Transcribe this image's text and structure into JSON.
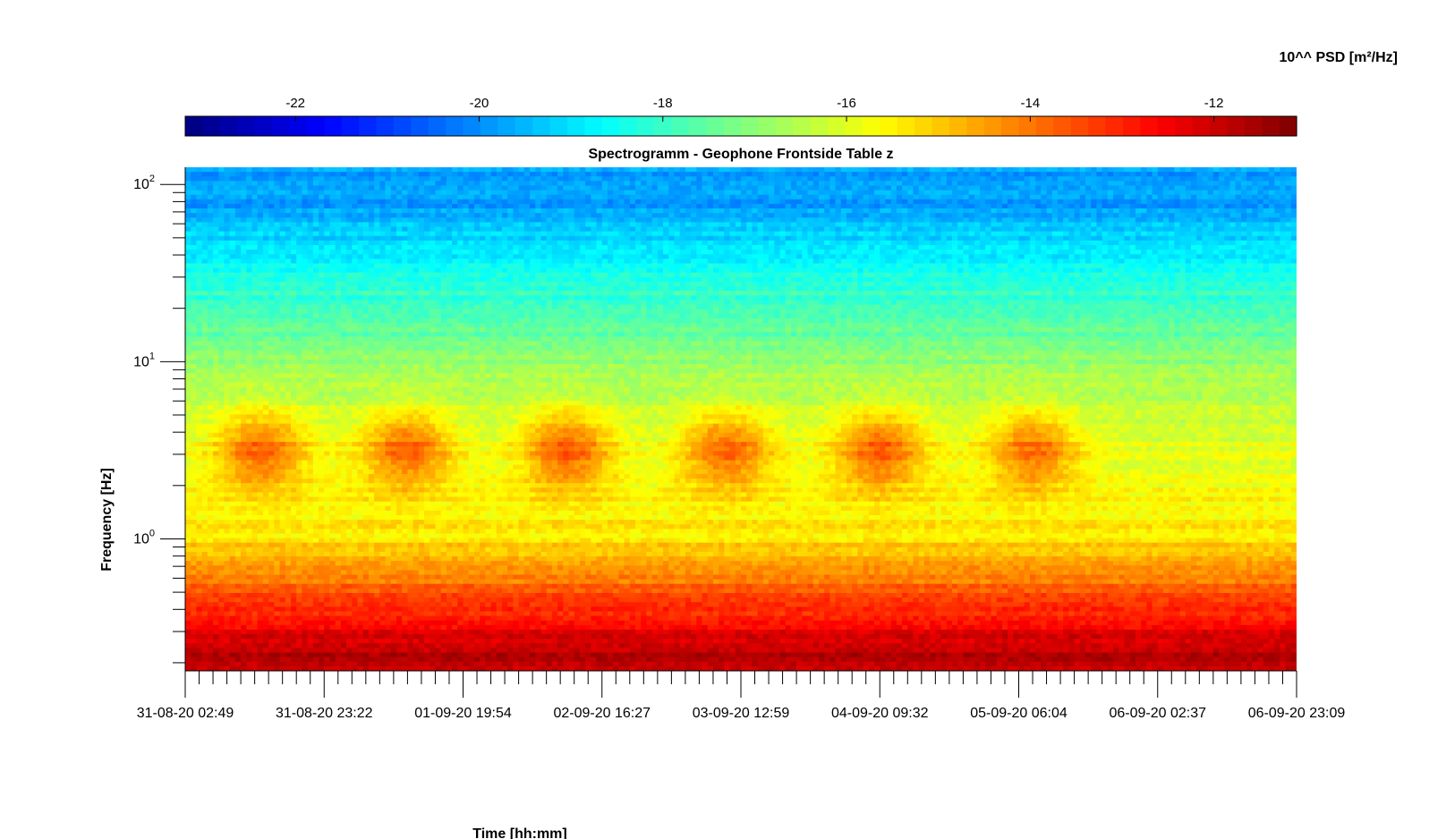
{
  "chart_data": {
    "type": "heatmap",
    "title": "Spectrogramm - Geophone Frontside Table z",
    "xlabel": "Time [hh:mm]",
    "ylabel": "Frequency [Hz]",
    "colorbar": {
      "label": "10^^ PSD [m²/Hz]",
      "range": [
        -23.2,
        -11.1
      ],
      "ticks": [
        "-22",
        "-20",
        "-18",
        "-16",
        "-14",
        "-12"
      ],
      "tick_values": [
        -22,
        -20,
        -18,
        -16,
        -14,
        -12
      ],
      "colormap": "jet",
      "position": "top"
    },
    "x_tick_labels": [
      "31-08-20 02:49",
      "31-08-20 23:22",
      "01-09-20 19:54",
      "02-09-20 16:27",
      "03-09-20 12:59",
      "04-09-20 09:32",
      "05-09-20 06:04",
      "06-09-20 02:37",
      "06-09-20 23:09"
    ],
    "x_minor_ticks_per_interval": 10,
    "y_scale": "log",
    "y_range": [
      0.18,
      125
    ],
    "y_tick_labels": [
      {
        "value": 1,
        "base": "10",
        "exp": "0"
      },
      {
        "value": 10,
        "base": "10",
        "exp": "1"
      },
      {
        "value": 100,
        "base": "10",
        "exp": "2"
      }
    ],
    "bands": [
      {
        "f_low": 0.18,
        "f_high": 0.3,
        "log_psd": -11.8
      },
      {
        "f_low": 0.3,
        "f_high": 0.75,
        "log_psd": -13.5
      },
      {
        "f_low": 0.75,
        "f_high": 1.5,
        "log_psd": -15.4
      },
      {
        "f_low": 1.5,
        "f_high": 6,
        "log_psd": -15.9
      },
      {
        "f_low": 6,
        "f_high": 16,
        "log_psd": -16.9
      },
      {
        "f_low": 16,
        "f_high": 50,
        "log_psd": -18.3
      },
      {
        "f_low": 50,
        "f_high": 125,
        "log_psd": -19.8
      }
    ],
    "daily_activity_peaks": [
      {
        "day_index": 0.55,
        "f_center": 3.2,
        "log_psd": -13.8
      },
      {
        "day_index": 1.6,
        "f_center": 3.2,
        "log_psd": -13.8
      },
      {
        "day_index": 2.75,
        "f_center": 3.2,
        "log_psd": -13.7
      },
      {
        "day_index": 3.9,
        "f_center": 3.2,
        "log_psd": -13.8
      },
      {
        "day_index": 5.0,
        "f_center": 3.2,
        "log_psd": -13.7
      },
      {
        "day_index": 6.1,
        "f_center": 3.2,
        "log_psd": -13.9
      }
    ]
  }
}
